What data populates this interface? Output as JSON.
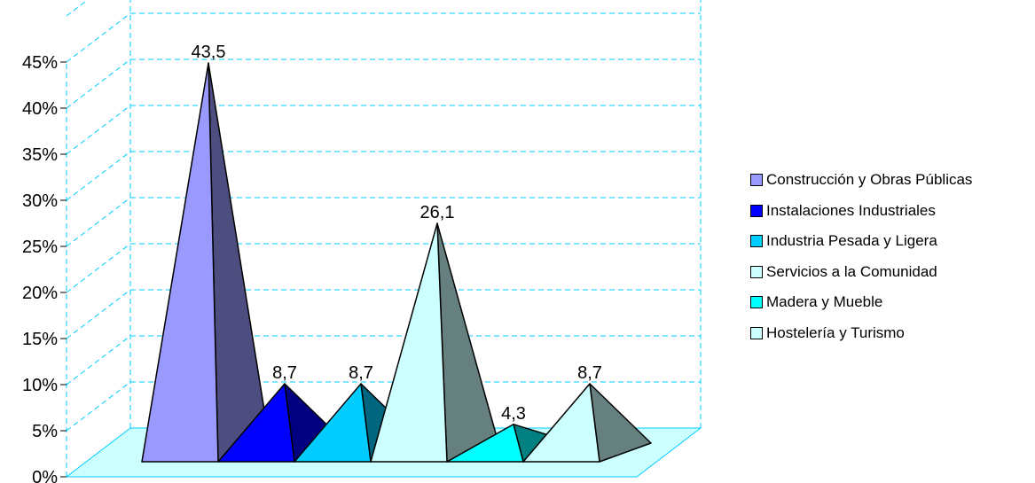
{
  "chart_data": {
    "type": "bar",
    "style": "3d-pyramid",
    "categories": [
      "Construcción y Obras Públicas",
      "Instalaciones Industriales",
      "Industria Pesada y Ligera",
      "Servicios a la Comunidad",
      "Madera y Mueble",
      "Hostelería y Turismo"
    ],
    "values": [
      43.5,
      8.7,
      8.7,
      26.1,
      4.3,
      8.7
    ],
    "data_labels": [
      "43,5",
      "8,7",
      "8,7",
      "26,1",
      "4,3",
      "8,7"
    ],
    "colors": [
      "#9999FF",
      "#0000FF",
      "#00CCFF",
      "#CCFFFF",
      "#00FFFF",
      "#CCFFFF"
    ],
    "y_ticks": [
      "0%",
      "5%",
      "10%",
      "15%",
      "20%",
      "25%",
      "30%",
      "35%",
      "40%",
      "45%"
    ],
    "ylim": [
      0,
      50
    ],
    "grid": true,
    "gridline_color": "#00CCFF",
    "floor_color": "#CCFFFF",
    "legend": {
      "position": "right",
      "entries": [
        "Construcción y Obras Públicas",
        "Instalaciones Industriales",
        "Industria Pesada y Ligera",
        "Servicios a la Comunidad",
        "Madera y Mueble",
        "Hostelería y Turismo"
      ]
    },
    "title": "",
    "xlabel": "",
    "ylabel": ""
  }
}
